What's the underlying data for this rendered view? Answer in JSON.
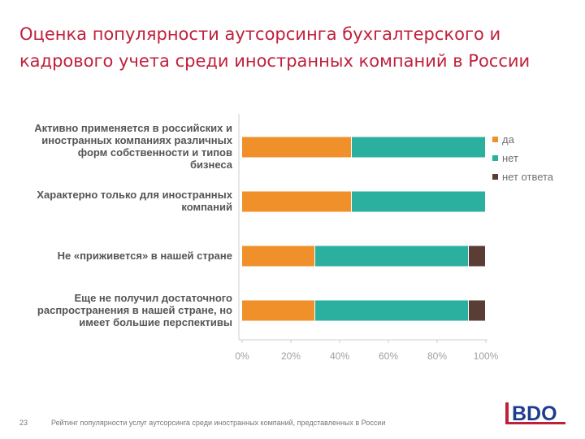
{
  "title": {
    "line1": "Оценка популярности аутсорсинга бухгалтерского и",
    "line2": "кадрового учета среди иностранных компаний в России"
  },
  "chart_data": {
    "type": "bar",
    "orientation": "horizontal",
    "stacked": true,
    "categories": [
      "Активно применяется в российских и иностранных компаниях различных форм собственности и типов бизнеса",
      "Характерно только для иностранных компаний",
      "Не «приживется» в нашей стране",
      "Еще не получил достаточного распространения в нашей стране, но имеет большие перспективы"
    ],
    "category_lines": [
      [
        "Активно применяется в российских и",
        "иностранных компаниях различных",
        "форм собственности и типов",
        "бизнеса"
      ],
      [
        "Характерно только для иностранных",
        "компаний"
      ],
      [
        "Не «приживется» в нашей стране"
      ],
      [
        "Еще не получил достаточного",
        "распространения в нашей стране, но",
        "имеет большие перспективы"
      ]
    ],
    "series": [
      {
        "name": "да",
        "color": "#f0902a",
        "values": [
          45,
          45,
          30,
          30
        ]
      },
      {
        "name": "нет",
        "color": "#2bb0a0",
        "values": [
          55,
          55,
          63,
          63
        ]
      },
      {
        "name": "нет ответа",
        "color": "#5a3e36",
        "values": [
          0,
          0,
          7,
          7
        ]
      }
    ],
    "x_ticks": [
      "0%",
      "20%",
      "40%",
      "60%",
      "80%",
      "100%"
    ],
    "xlim": [
      0,
      100
    ],
    "legend_position": "right",
    "grid": false
  },
  "footer": {
    "page": "23",
    "text": "Рейтинг популярности услуг аутсорсинга среди иностранных компаний, представленных в России"
  },
  "logo": {
    "text": "BDO",
    "color": "#1f3d8f",
    "accent": "#c0203c"
  }
}
